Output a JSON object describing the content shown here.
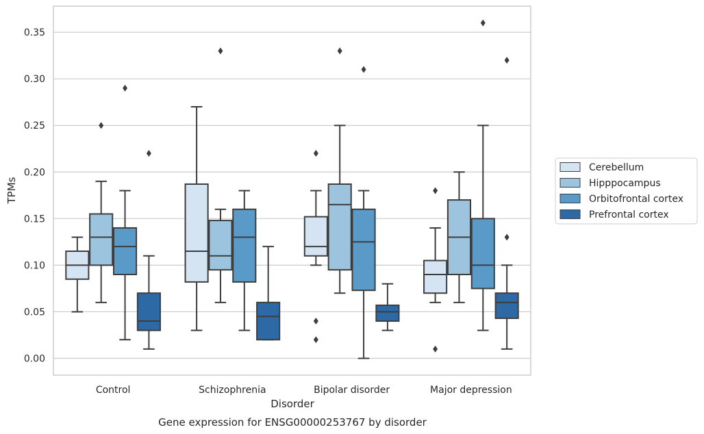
{
  "chart_data": {
    "type": "box",
    "caption": "Gene expression for ENSG00000253767 by disorder",
    "xlabel": "Disorder",
    "ylabel": "TPMs",
    "ylim": [
      -0.018,
      0.378
    ],
    "yticks": [
      "0.00",
      "0.05",
      "0.10",
      "0.15",
      "0.20",
      "0.25",
      "0.30",
      "0.35"
    ],
    "grid": "horizontal",
    "legend_position": "right",
    "categories": [
      "Control",
      "Schizophrenia",
      "Bipolar disorder",
      "Major depression"
    ],
    "series": [
      {
        "name": "Cerebellum",
        "color": "#d5e4f3",
        "boxes": [
          {
            "whislo": 0.05,
            "q1": 0.085,
            "med": 0.1,
            "q3": 0.115,
            "whishi": 0.13,
            "fliers": []
          },
          {
            "whislo": 0.03,
            "q1": 0.082,
            "med": 0.115,
            "q3": 0.187,
            "whishi": 0.27,
            "fliers": []
          },
          {
            "whislo": 0.1,
            "q1": 0.11,
            "med": 0.12,
            "q3": 0.152,
            "whishi": 0.18,
            "fliers": [
              0.22,
              0.04,
              0.02
            ]
          },
          {
            "whislo": 0.06,
            "q1": 0.07,
            "med": 0.09,
            "q3": 0.105,
            "whishi": 0.14,
            "fliers": [
              0.18,
              0.01
            ]
          }
        ]
      },
      {
        "name": "Hipppocampus",
        "color": "#9dc4de",
        "boxes": [
          {
            "whislo": 0.06,
            "q1": 0.1,
            "med": 0.13,
            "q3": 0.155,
            "whishi": 0.19,
            "fliers": [
              0.25
            ]
          },
          {
            "whislo": 0.06,
            "q1": 0.095,
            "med": 0.11,
            "q3": 0.148,
            "whishi": 0.16,
            "fliers": [
              0.33
            ]
          },
          {
            "whislo": 0.07,
            "q1": 0.095,
            "med": 0.165,
            "q3": 0.187,
            "whishi": 0.25,
            "fliers": [
              0.33
            ]
          },
          {
            "whislo": 0.06,
            "q1": 0.09,
            "med": 0.13,
            "q3": 0.17,
            "whishi": 0.2,
            "fliers": []
          }
        ]
      },
      {
        "name": "Orbitofrontal cortex",
        "color": "#5a9ac9",
        "boxes": [
          {
            "whislo": 0.02,
            "q1": 0.09,
            "med": 0.12,
            "q3": 0.14,
            "whishi": 0.18,
            "fliers": [
              0.29
            ]
          },
          {
            "whislo": 0.03,
            "q1": 0.082,
            "med": 0.13,
            "q3": 0.16,
            "whishi": 0.18,
            "fliers": []
          },
          {
            "whislo": 0.0,
            "q1": 0.073,
            "med": 0.125,
            "q3": 0.16,
            "whishi": 0.18,
            "fliers": [
              0.31
            ]
          },
          {
            "whislo": 0.03,
            "q1": 0.075,
            "med": 0.1,
            "q3": 0.15,
            "whishi": 0.25,
            "fliers": [
              0.36
            ]
          }
        ]
      },
      {
        "name": "Prefrontal cortex",
        "color": "#2d69a5",
        "boxes": [
          {
            "whislo": 0.01,
            "q1": 0.03,
            "med": 0.04,
            "q3": 0.07,
            "whishi": 0.11,
            "fliers": [
              0.22
            ]
          },
          {
            "whislo": 0.02,
            "q1": 0.02,
            "med": 0.045,
            "q3": 0.06,
            "whishi": 0.12,
            "fliers": []
          },
          {
            "whislo": 0.03,
            "q1": 0.04,
            "med": 0.05,
            "q3": 0.057,
            "whishi": 0.08,
            "fliers": []
          },
          {
            "whislo": 0.01,
            "q1": 0.043,
            "med": 0.06,
            "q3": 0.07,
            "whishi": 0.1,
            "fliers": [
              0.32,
              0.13
            ]
          }
        ]
      }
    ]
  }
}
